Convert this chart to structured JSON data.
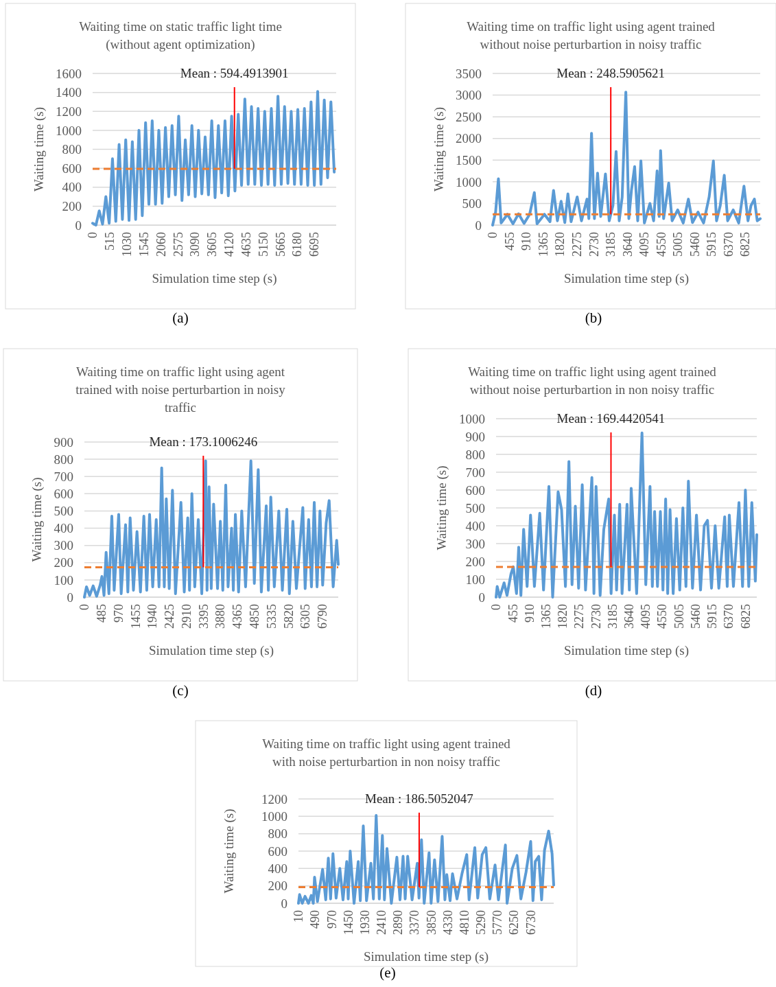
{
  "chart_data": [
    {
      "type": "line",
      "title": "Waiting time on static traffic light time\n(without agent optimization)",
      "xlabel": "Simulation time step (s)",
      "ylabel": "Waiting time (s)",
      "color": "#5b9bd5",
      "xlim": [
        0,
        7360
      ],
      "xticks": [
        0,
        515,
        1030,
        1545,
        2060,
        2575,
        3090,
        3605,
        4120,
        4635,
        5150,
        5665,
        6180,
        6695
      ],
      "ylim": [
        0,
        1600
      ],
      "yticks": [
        0,
        200,
        400,
        600,
        800,
        1000,
        1200,
        1400,
        1600
      ],
      "grid": "y",
      "x": [
        0,
        100,
        200,
        300,
        400,
        500,
        600,
        700,
        800,
        900,
        1000,
        1100,
        1200,
        1300,
        1400,
        1500,
        1600,
        1700,
        1800,
        1900,
        2000,
        2100,
        2200,
        2300,
        2400,
        2500,
        2600,
        2700,
        2800,
        2900,
        3000,
        3100,
        3200,
        3300,
        3400,
        3500,
        3600,
        3700,
        3800,
        3900,
        4000,
        4100,
        4200,
        4300,
        4400,
        4500,
        4600,
        4700,
        4800,
        4900,
        5000,
        5100,
        5200,
        5300,
        5400,
        5500,
        5600,
        5700,
        5800,
        5900,
        6000,
        6100,
        6200,
        6300,
        6400,
        6500,
        6600,
        6700,
        6800,
        6900,
        7000,
        7100,
        7200,
        7300
      ],
      "values": [
        20,
        0,
        150,
        10,
        300,
        20,
        700,
        40,
        850,
        60,
        900,
        50,
        880,
        60,
        1000,
        100,
        1080,
        220,
        1100,
        220,
        1000,
        230,
        1030,
        300,
        1050,
        320,
        1150,
        260,
        900,
        320,
        1050,
        300,
        1000,
        330,
        930,
        320,
        1100,
        290,
        1050,
        340,
        1100,
        310,
        1150,
        360,
        1170,
        420,
        1330,
        430,
        1250,
        430,
        1230,
        420,
        1200,
        430,
        1230,
        420,
        1360,
        430,
        1250,
        440,
        1200,
        430,
        1220,
        430,
        1230,
        420,
        1300,
        420,
        1410,
        430,
        1320,
        500,
        1300,
        560
      ],
      "ref_lines": [
        {
          "axis": "y",
          "value": 594.4913901,
          "color": "#ed7d31",
          "line_style": "dashed"
        }
      ],
      "annotations": [
        {
          "text": "Mean : 594.4913901",
          "x": 4286,
          "y": 594.4913901
        },
        "(a)"
      ]
    },
    {
      "type": "line",
      "title": "Waiting time on traffic light using agent trained\nwithout noise perturbartion in noisy traffic",
      "xlabel": "Simulation time step (s)",
      "ylabel": "Waiting time (s)",
      "color": "#5b9bd5",
      "xlim": [
        0,
        7230
      ],
      "xticks": [
        0,
        455,
        910,
        1365,
        1820,
        2275,
        2730,
        3185,
        3640,
        4095,
        4550,
        5005,
        5460,
        5915,
        6370,
        6825
      ],
      "ylim": [
        0,
        3500
      ],
      "yticks": [
        0,
        500,
        1000,
        1500,
        2000,
        2500,
        3000,
        3500
      ],
      "grid": "y",
      "x": [
        0,
        80,
        156,
        230,
        400,
        550,
        700,
        850,
        1000,
        1127,
        1200,
        1400,
        1550,
        1646,
        1750,
        1850,
        1950,
        2034,
        2120,
        2284,
        2400,
        2550,
        2600,
        2672,
        2750,
        2835,
        2920,
        3048,
        3150,
        3250,
        3336,
        3420,
        3500,
        3599,
        3680,
        3750,
        3837,
        3920,
        4006,
        4100,
        4250,
        4350,
        4444,
        4500,
        4538,
        4620,
        4757,
        4850,
        5000,
        5150,
        5289,
        5400,
        5550,
        5700,
        5850,
        5965,
        6050,
        6150,
        6259,
        6350,
        6500,
        6650,
        6791,
        6900,
        6980,
        7072,
        7150,
        7230
      ],
      "values": [
        0,
        300,
        1070,
        50,
        250,
        30,
        260,
        40,
        250,
        750,
        30,
        250,
        80,
        800,
        100,
        550,
        60,
        720,
        80,
        650,
        100,
        600,
        150,
        2120,
        150,
        1200,
        200,
        1180,
        100,
        450,
        1700,
        100,
        650,
        3070,
        150,
        800,
        1350,
        100,
        1480,
        50,
        500,
        100,
        1250,
        200,
        1720,
        150,
        970,
        100,
        350,
        50,
        600,
        60,
        300,
        50,
        650,
        1480,
        100,
        450,
        1150,
        100,
        350,
        50,
        900,
        100,
        450,
        600,
        100,
        150
      ],
      "ref_lines": [
        {
          "axis": "y",
          "value": 248.5905621,
          "color": "#ed7d31",
          "line_style": "dashed"
        }
      ],
      "annotations": [
        {
          "text": "Mean : 248.5905621",
          "x": 3192,
          "y": 248.5905621
        },
        "(b)"
      ]
    },
    {
      "type": "line",
      "title": "Waiting time on traffic light using agent\ntrained with noise perturbartion in noisy\ntraffic",
      "xlabel": "Simulation time step (s)",
      "ylabel": "Waiting time (s)",
      "color": "#5b9bd5",
      "xlim": [
        0,
        7245
      ],
      "xticks": [
        0,
        485,
        970,
        1455,
        1940,
        2425,
        2910,
        3395,
        3880,
        4365,
        4850,
        5335,
        5820,
        6305,
        6790
      ],
      "ylim": [
        0,
        900
      ],
      "yticks": [
        0,
        100,
        200,
        300,
        400,
        500,
        600,
        700,
        800,
        900
      ],
      "grid": "y",
      "x": [
        0,
        60,
        150,
        250,
        350,
        450,
        500,
        560,
        620,
        700,
        783,
        850,
        979,
        1050,
        1175,
        1240,
        1306,
        1400,
        1501,
        1600,
        1697,
        1780,
        1860,
        1950,
        2050,
        2130,
        2206,
        2280,
        2337,
        2420,
        2513,
        2600,
        2755,
        2850,
        2950,
        3000,
        3068,
        3150,
        3250,
        3350,
        3460,
        3500,
        3558,
        3620,
        3688,
        3800,
        3880,
        3950,
        4034,
        4100,
        4200,
        4250,
        4309,
        4400,
        4491,
        4600,
        4752,
        4850,
        4961,
        5050,
        5190,
        5250,
        5320,
        5420,
        5548,
        5650,
        5777,
        5850,
        5950,
        6050,
        6234,
        6300,
        6400,
        6480,
        6560,
        6640,
        6723,
        6800,
        6900,
        6985,
        7100,
        7200,
        7245
      ],
      "values": [
        0,
        60,
        10,
        65,
        5,
        70,
        120,
        10,
        260,
        20,
        470,
        40,
        480,
        20,
        420,
        30,
        460,
        40,
        380,
        30,
        470,
        40,
        480,
        60,
        450,
        60,
        750,
        60,
        570,
        50,
        620,
        20,
        550,
        30,
        460,
        40,
        600,
        60,
        450,
        20,
        790,
        40,
        640,
        50,
        540,
        50,
        440,
        40,
        650,
        60,
        400,
        40,
        480,
        30,
        500,
        60,
        790,
        80,
        740,
        30,
        530,
        40,
        580,
        60,
        500,
        40,
        510,
        20,
        440,
        50,
        520,
        50,
        450,
        60,
        550,
        60,
        500,
        70,
        430,
        560,
        60,
        330,
        190
      ],
      "ref_lines": [
        {
          "axis": "y",
          "value": 173.1006246,
          "color": "#ed7d31",
          "line_style": "dashed"
        }
      ],
      "annotations": [
        {
          "text": "Mean : 173.1006246",
          "x": 3394,
          "y": 173.1006246
        },
        "(c)"
      ]
    },
    {
      "type": "line",
      "title": "Waiting time on traffic light using agent trained\nwithout noise perturbartion in non noisy traffic",
      "xlabel": "Simulation time step (s)",
      "ylabel": "Waiting time (s)",
      "color": "#5b9bd5",
      "xlim": [
        0,
        7140
      ],
      "xticks": [
        0,
        455,
        910,
        1365,
        1820,
        2275,
        2730,
        3185,
        3640,
        4095,
        4550,
        5005,
        5460,
        5915,
        6370,
        6825
      ],
      "ylim": [
        0,
        1000
      ],
      "yticks": [
        0,
        100,
        200,
        300,
        400,
        500,
        600,
        700,
        800,
        900,
        1000
      ],
      "grid": "y",
      "x": [
        0,
        31,
        100,
        220,
        300,
        409,
        472,
        560,
        620,
        680,
        755,
        850,
        944,
        1050,
        1196,
        1300,
        1447,
        1550,
        1699,
        1794,
        1900,
        1995,
        2080,
        2171,
        2260,
        2360,
        2450,
        2624,
        2680,
        2738,
        2850,
        2950,
        3084,
        3150,
        3241,
        3300,
        3386,
        3450,
        3587,
        3650,
        3700,
        3850,
        3996,
        4100,
        4216,
        4280,
        4342,
        4420,
        4500,
        4570,
        4644,
        4700,
        4764,
        4850,
        4940,
        5030,
        5116,
        5200,
        5267,
        5380,
        5488,
        5600,
        5700,
        5790,
        5900,
        6000,
        6100,
        6261,
        6330,
        6387,
        6500,
        6652,
        6750,
        6828,
        6920,
        7004,
        7100,
        7140
      ],
      "values": [
        0,
        60,
        0,
        80,
        10,
        130,
        170,
        20,
        280,
        10,
        380,
        60,
        460,
        60,
        470,
        40,
        620,
        0,
        590,
        490,
        60,
        760,
        70,
        510,
        50,
        630,
        40,
        670,
        20,
        620,
        10,
        380,
        550,
        20,
        460,
        40,
        520,
        20,
        520,
        40,
        610,
        20,
        920,
        70,
        620,
        60,
        480,
        60,
        480,
        40,
        550,
        20,
        490,
        20,
        440,
        40,
        500,
        60,
        650,
        50,
        460,
        40,
        400,
        430,
        50,
        400,
        50,
        450,
        60,
        460,
        60,
        530,
        60,
        600,
        60,
        530,
        90,
        350
      ],
      "ref_lines": [
        {
          "axis": "y",
          "value": 169.4420541,
          "color": "#ed7d31",
          "line_style": "dashed"
        }
      ],
      "annotations": [
        {
          "text": "Mean : 169.4420541",
          "x": 3147,
          "y": 169.4420541
        },
        "(d)"
      ]
    },
    {
      "type": "line",
      "title": "Waiting time on traffic light using agent trained\nwith noise perturbartion in non noisy traffic",
      "xlabel": "Simulation time step (s)",
      "ylabel": "Waiting time (s)",
      "color": "#5b9bd5",
      "xlim": [
        10,
        7400
      ],
      "xticks": [
        10,
        490,
        970,
        1450,
        1930,
        2410,
        2890,
        3370,
        3850,
        4330,
        4810,
        5290,
        5770,
        6250,
        6730
      ],
      "ylim": [
        0,
        1200
      ],
      "yticks": [
        0,
        200,
        400,
        600,
        800,
        1000,
        1200
      ],
      "grid": "y",
      "x": [
        10,
        43,
        120,
        200,
        300,
        380,
        440,
        476,
        560,
        709,
        800,
        875,
        940,
        1009,
        1100,
        1208,
        1300,
        1408,
        1450,
        1508,
        1620,
        1741,
        1800,
        1887,
        1980,
        2107,
        2180,
        2260,
        2350,
        2440,
        2500,
        2573,
        2700,
        2859,
        2950,
        3039,
        3100,
        3172,
        3300,
        3450,
        3500,
        3572,
        3650,
        3791,
        3850,
        3950,
        4050,
        4171,
        4250,
        4304,
        4400,
        4470,
        4600,
        4750,
        4883,
        4950,
        5116,
        5200,
        5330,
        5436,
        5550,
        5702,
        5800,
        6002,
        6050,
        6200,
        6335,
        6450,
        6600,
        6734,
        6800,
        6867,
        6967,
        7050,
        7134,
        7253,
        7353,
        7400
      ],
      "values": [
        0,
        100,
        0,
        80,
        0,
        90,
        0,
        300,
        20,
        390,
        40,
        520,
        50,
        570,
        60,
        400,
        40,
        480,
        50,
        600,
        0,
        480,
        30,
        890,
        30,
        460,
        50,
        1010,
        50,
        780,
        40,
        630,
        0,
        530,
        40,
        540,
        50,
        540,
        40,
        460,
        60,
        730,
        0,
        580,
        0,
        500,
        20,
        770,
        40,
        330,
        30,
        340,
        50,
        350,
        560,
        40,
        640,
        60,
        560,
        640,
        50,
        440,
        40,
        670,
        0,
        400,
        550,
        50,
        360,
        710,
        30,
        480,
        540,
        40,
        610,
        830,
        570,
        210
      ],
      "ref_lines": [
        {
          "axis": "y",
          "value": 186.5052047,
          "color": "#ed7d31",
          "line_style": "dashed"
        }
      ],
      "annotations": [
        {
          "text": "Mean : 186.5052047",
          "x": 3505,
          "y": 186.5052047
        },
        "(e)"
      ]
    }
  ]
}
